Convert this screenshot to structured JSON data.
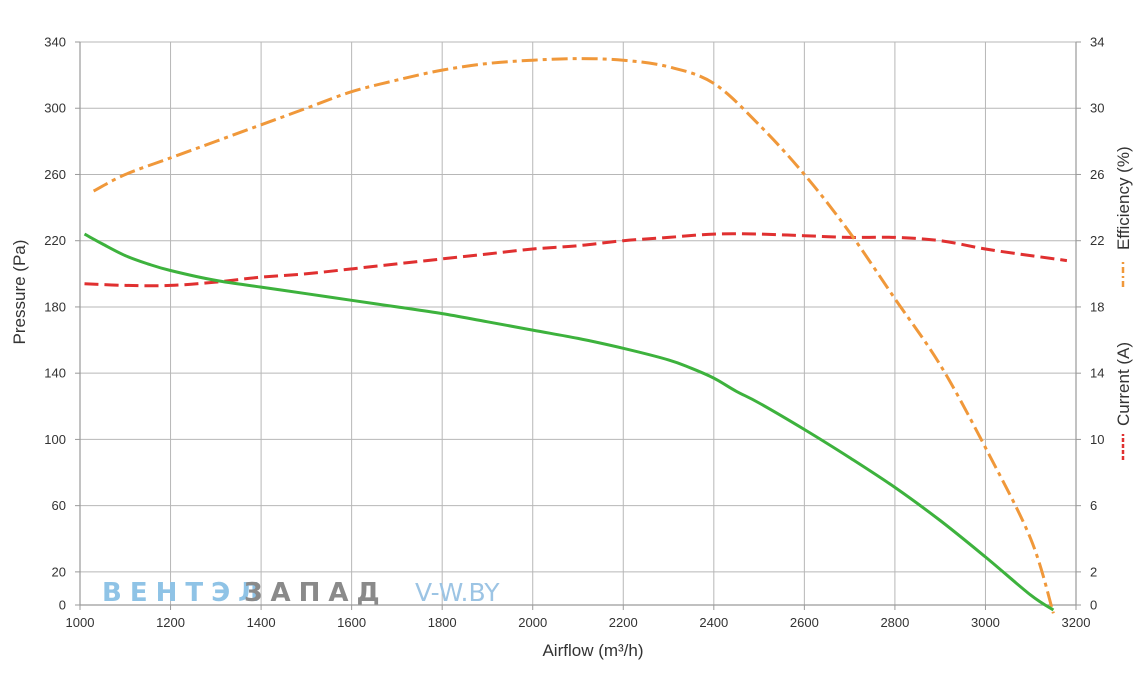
{
  "chart_data": {
    "type": "line",
    "xlabel": "Airflow (m3/h)",
    "ylabel": "Pressure (Pa)",
    "y2label_current": "Current (A)",
    "y2label_efficiency": "Efficiency (%)",
    "xlim": [
      1000,
      3200
    ],
    "ylim": [
      0,
      340
    ],
    "y2lim": [
      0,
      34
    ],
    "x_ticks": [
      1000,
      1200,
      1400,
      1600,
      1800,
      2000,
      2200,
      2400,
      2600,
      2800,
      3000,
      3200
    ],
    "y_ticks": [
      0,
      20,
      60,
      100,
      140,
      180,
      220,
      260,
      300,
      340
    ],
    "y2_ticks": [
      0,
      2,
      6,
      10,
      14,
      18,
      22,
      26,
      30,
      34
    ],
    "grid": true,
    "series": [
      {
        "name": "Pressure",
        "axis": "left",
        "color": "#3db23d",
        "style": "solid",
        "x": [
          1010,
          1050,
          1100,
          1150,
          1200,
          1300,
          1400,
          1500,
          1600,
          1700,
          1800,
          1900,
          2000,
          2100,
          2200,
          2300,
          2350,
          2400,
          2450,
          2500,
          2600,
          2700,
          2800,
          2900,
          3000,
          3100,
          3150
        ],
        "values": [
          224,
          218,
          211,
          206,
          202,
          196,
          192,
          188,
          184,
          180,
          176,
          171,
          166,
          161,
          155,
          148,
          143,
          137,
          129,
          122,
          106,
          89,
          71,
          51,
          29,
          6,
          -3
        ]
      },
      {
        "name": "Current",
        "axis": "right",
        "color": "#e03030",
        "style": "dashed",
        "x": [
          1010,
          1100,
          1200,
          1300,
          1400,
          1500,
          1600,
          1700,
          1800,
          1900,
          2000,
          2100,
          2200,
          2300,
          2400,
          2500,
          2600,
          2700,
          2800,
          2900,
          3000,
          3100,
          3180
        ],
        "values": [
          19.4,
          19.3,
          19.3,
          19.5,
          19.8,
          20.0,
          20.3,
          20.6,
          20.9,
          21.2,
          21.5,
          21.7,
          22.0,
          22.2,
          22.4,
          22.4,
          22.3,
          22.2,
          22.2,
          22.0,
          21.5,
          21.1,
          20.8
        ]
      },
      {
        "name": "Efficiency",
        "axis": "right",
        "color": "#f0983a",
        "style": "dashdot",
        "x": [
          1030,
          1100,
          1200,
          1300,
          1400,
          1500,
          1600,
          1700,
          1800,
          1900,
          2000,
          2100,
          2200,
          2300,
          2400,
          2500,
          2600,
          2700,
          2800,
          2900,
          3000,
          3100,
          3150
        ],
        "values": [
          25.0,
          26.0,
          27.0,
          28.0,
          29.0,
          30.0,
          31.0,
          31.7,
          32.3,
          32.7,
          32.9,
          33.0,
          32.9,
          32.5,
          31.5,
          29.0,
          26.0,
          22.5,
          18.5,
          14.5,
          9.5,
          4.0,
          -0.5
        ]
      }
    ]
  },
  "watermark": {
    "brand_part1": "ВЕНТЭЛ",
    "brand_part2": "ЗАПАД",
    "site": "V-W.BY"
  },
  "labels": {
    "x_title": "Airflow (m³/h)",
    "y_title": "Pressure (Pa)",
    "y2_title_current": "Current (A)",
    "y2_title_efficiency": "Efficiency (%)"
  }
}
